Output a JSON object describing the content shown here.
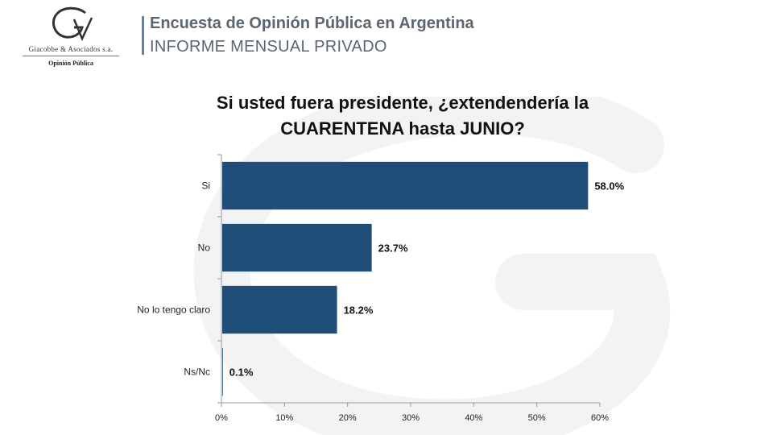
{
  "header": {
    "logo_company": "Giacobbe & Asociados s.a.",
    "logo_subtitle": "Opinión Pública",
    "title": "Encuesta de Opinión Pública en Argentina",
    "subtitle": "INFORME MENSUAL PRIVADO"
  },
  "chart_data": {
    "type": "bar",
    "orientation": "horizontal",
    "title_lines": [
      "Si usted fuera presidente, ¿extendendería la",
      "CUARENTENA hasta JUNIO?"
    ],
    "categories": [
      "Si",
      "No",
      "No lo tengo claro",
      "Ns/Nc"
    ],
    "values": [
      58.0,
      23.7,
      18.2,
      0.1
    ],
    "value_labels": [
      "58.0%",
      "23.7%",
      "18.2%",
      "0.1%"
    ],
    "xlim": [
      0,
      60
    ],
    "xticks": [
      0,
      10,
      20,
      30,
      40,
      50,
      60
    ],
    "xtick_labels": [
      "0%",
      "10%",
      "20%",
      "30%",
      "40%",
      "50%",
      "60%"
    ],
    "grid": false,
    "bar_color": "#1f4e79"
  }
}
